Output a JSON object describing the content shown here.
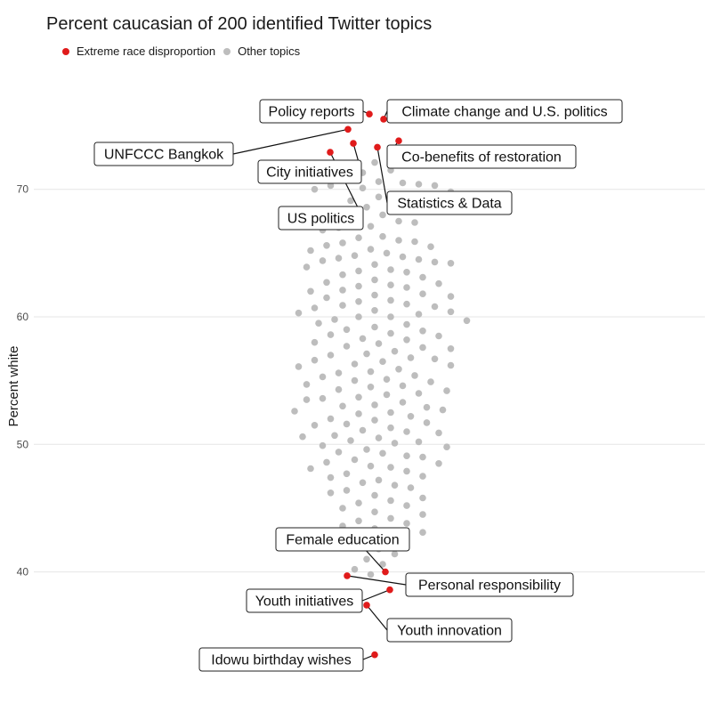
{
  "chart_data": {
    "type": "scatter",
    "title": "Percent caucasian of 200 identified Twitter topics",
    "ylabel": "Percent white",
    "xlabel": "",
    "ylim": [
      32,
      83
    ],
    "yticks": [
      40,
      50,
      60,
      70
    ],
    "grid": true,
    "legend": {
      "placement": "top-left",
      "entries": [
        {
          "name": "Extreme race disproportion",
          "color": "#e01b1b"
        },
        {
          "name": "Other topics",
          "color": "#bdbdbd"
        }
      ]
    },
    "series": [
      {
        "name": "Extreme race disproportion",
        "color": "#e01b1b",
        "points": [
          {
            "label": "Policy reports",
            "y": 75.9
          },
          {
            "label": "Climate change and U.S. politics",
            "y": 75.5
          },
          {
            "label": "UNFCCC Bangkok",
            "y": 74.7
          },
          {
            "label": "Co-benefits of restoration",
            "y": 73.8
          },
          {
            "label": "City initiatives",
            "y": 73.6
          },
          {
            "label": "Statistics & Data",
            "y": 73.3
          },
          {
            "label": "US politics",
            "y": 72.9
          },
          {
            "label": "Female education",
            "y": 40.0
          },
          {
            "label": "Personal responsibility",
            "y": 39.7
          },
          {
            "label": "Youth initiatives",
            "y": 38.6
          },
          {
            "label": "Youth innovation",
            "y": 37.4
          },
          {
            "label": "Idowu birthday wishes",
            "y": 33.5
          }
        ]
      },
      {
        "name": "Other topics",
        "color": "#bdbdbd",
        "y": [
          72.1,
          71.5,
          71.3,
          70.9,
          70.6,
          70.5,
          70.4,
          70.3,
          70.3,
          70.1,
          70.0,
          69.8,
          69.4,
          69.3,
          69.1,
          69.0,
          68.6,
          68.4,
          68.0,
          67.6,
          67.5,
          67.4,
          67.1,
          67.0,
          66.8,
          66.3,
          66.2,
          66.0,
          65.9,
          65.8,
          65.6,
          65.5,
          65.3,
          65.2,
          65.0,
          64.8,
          64.7,
          64.6,
          64.5,
          64.4,
          64.3,
          64.2,
          64.1,
          63.9,
          63.7,
          63.6,
          63.5,
          63.3,
          63.1,
          62.9,
          62.7,
          62.6,
          62.5,
          62.4,
          62.3,
          62.1,
          62.0,
          61.8,
          61.7,
          61.6,
          61.5,
          61.3,
          61.2,
          61.0,
          60.9,
          60.8,
          60.7,
          60.5,
          60.4,
          60.3,
          60.2,
          60.0,
          60.0,
          59.8,
          59.7,
          59.5,
          59.4,
          59.2,
          59.0,
          58.9,
          58.7,
          58.6,
          58.5,
          58.3,
          58.2,
          58.0,
          57.9,
          57.7,
          57.6,
          57.5,
          57.3,
          57.1,
          57.0,
          56.8,
          56.7,
          56.6,
          56.5,
          56.3,
          56.2,
          56.1,
          55.9,
          55.7,
          55.6,
          55.4,
          55.3,
          55.1,
          55.0,
          54.9,
          54.7,
          54.6,
          54.5,
          54.3,
          54.2,
          54.0,
          53.9,
          53.7,
          53.6,
          53.5,
          53.3,
          53.1,
          53.0,
          52.9,
          52.7,
          52.6,
          52.5,
          52.4,
          52.2,
          52.0,
          51.9,
          51.7,
          51.6,
          51.5,
          51.3,
          51.1,
          51.0,
          50.9,
          50.7,
          50.6,
          50.5,
          50.3,
          50.2,
          50.1,
          49.9,
          49.8,
          49.6,
          49.4,
          49.3,
          49.1,
          49.0,
          48.8,
          48.6,
          48.5,
          48.3,
          48.2,
          48.1,
          47.9,
          47.7,
          47.5,
          47.4,
          47.2,
          47.0,
          46.8,
          46.6,
          46.4,
          46.2,
          46.0,
          45.8,
          45.6,
          45.4,
          45.2,
          45.0,
          44.7,
          44.5,
          44.2,
          44.0,
          43.8,
          43.6,
          43.4,
          43.1,
          42.8,
          42.5,
          42.2,
          41.8,
          41.4,
          41.0,
          40.6,
          40.2,
          39.8
        ]
      }
    ]
  }
}
